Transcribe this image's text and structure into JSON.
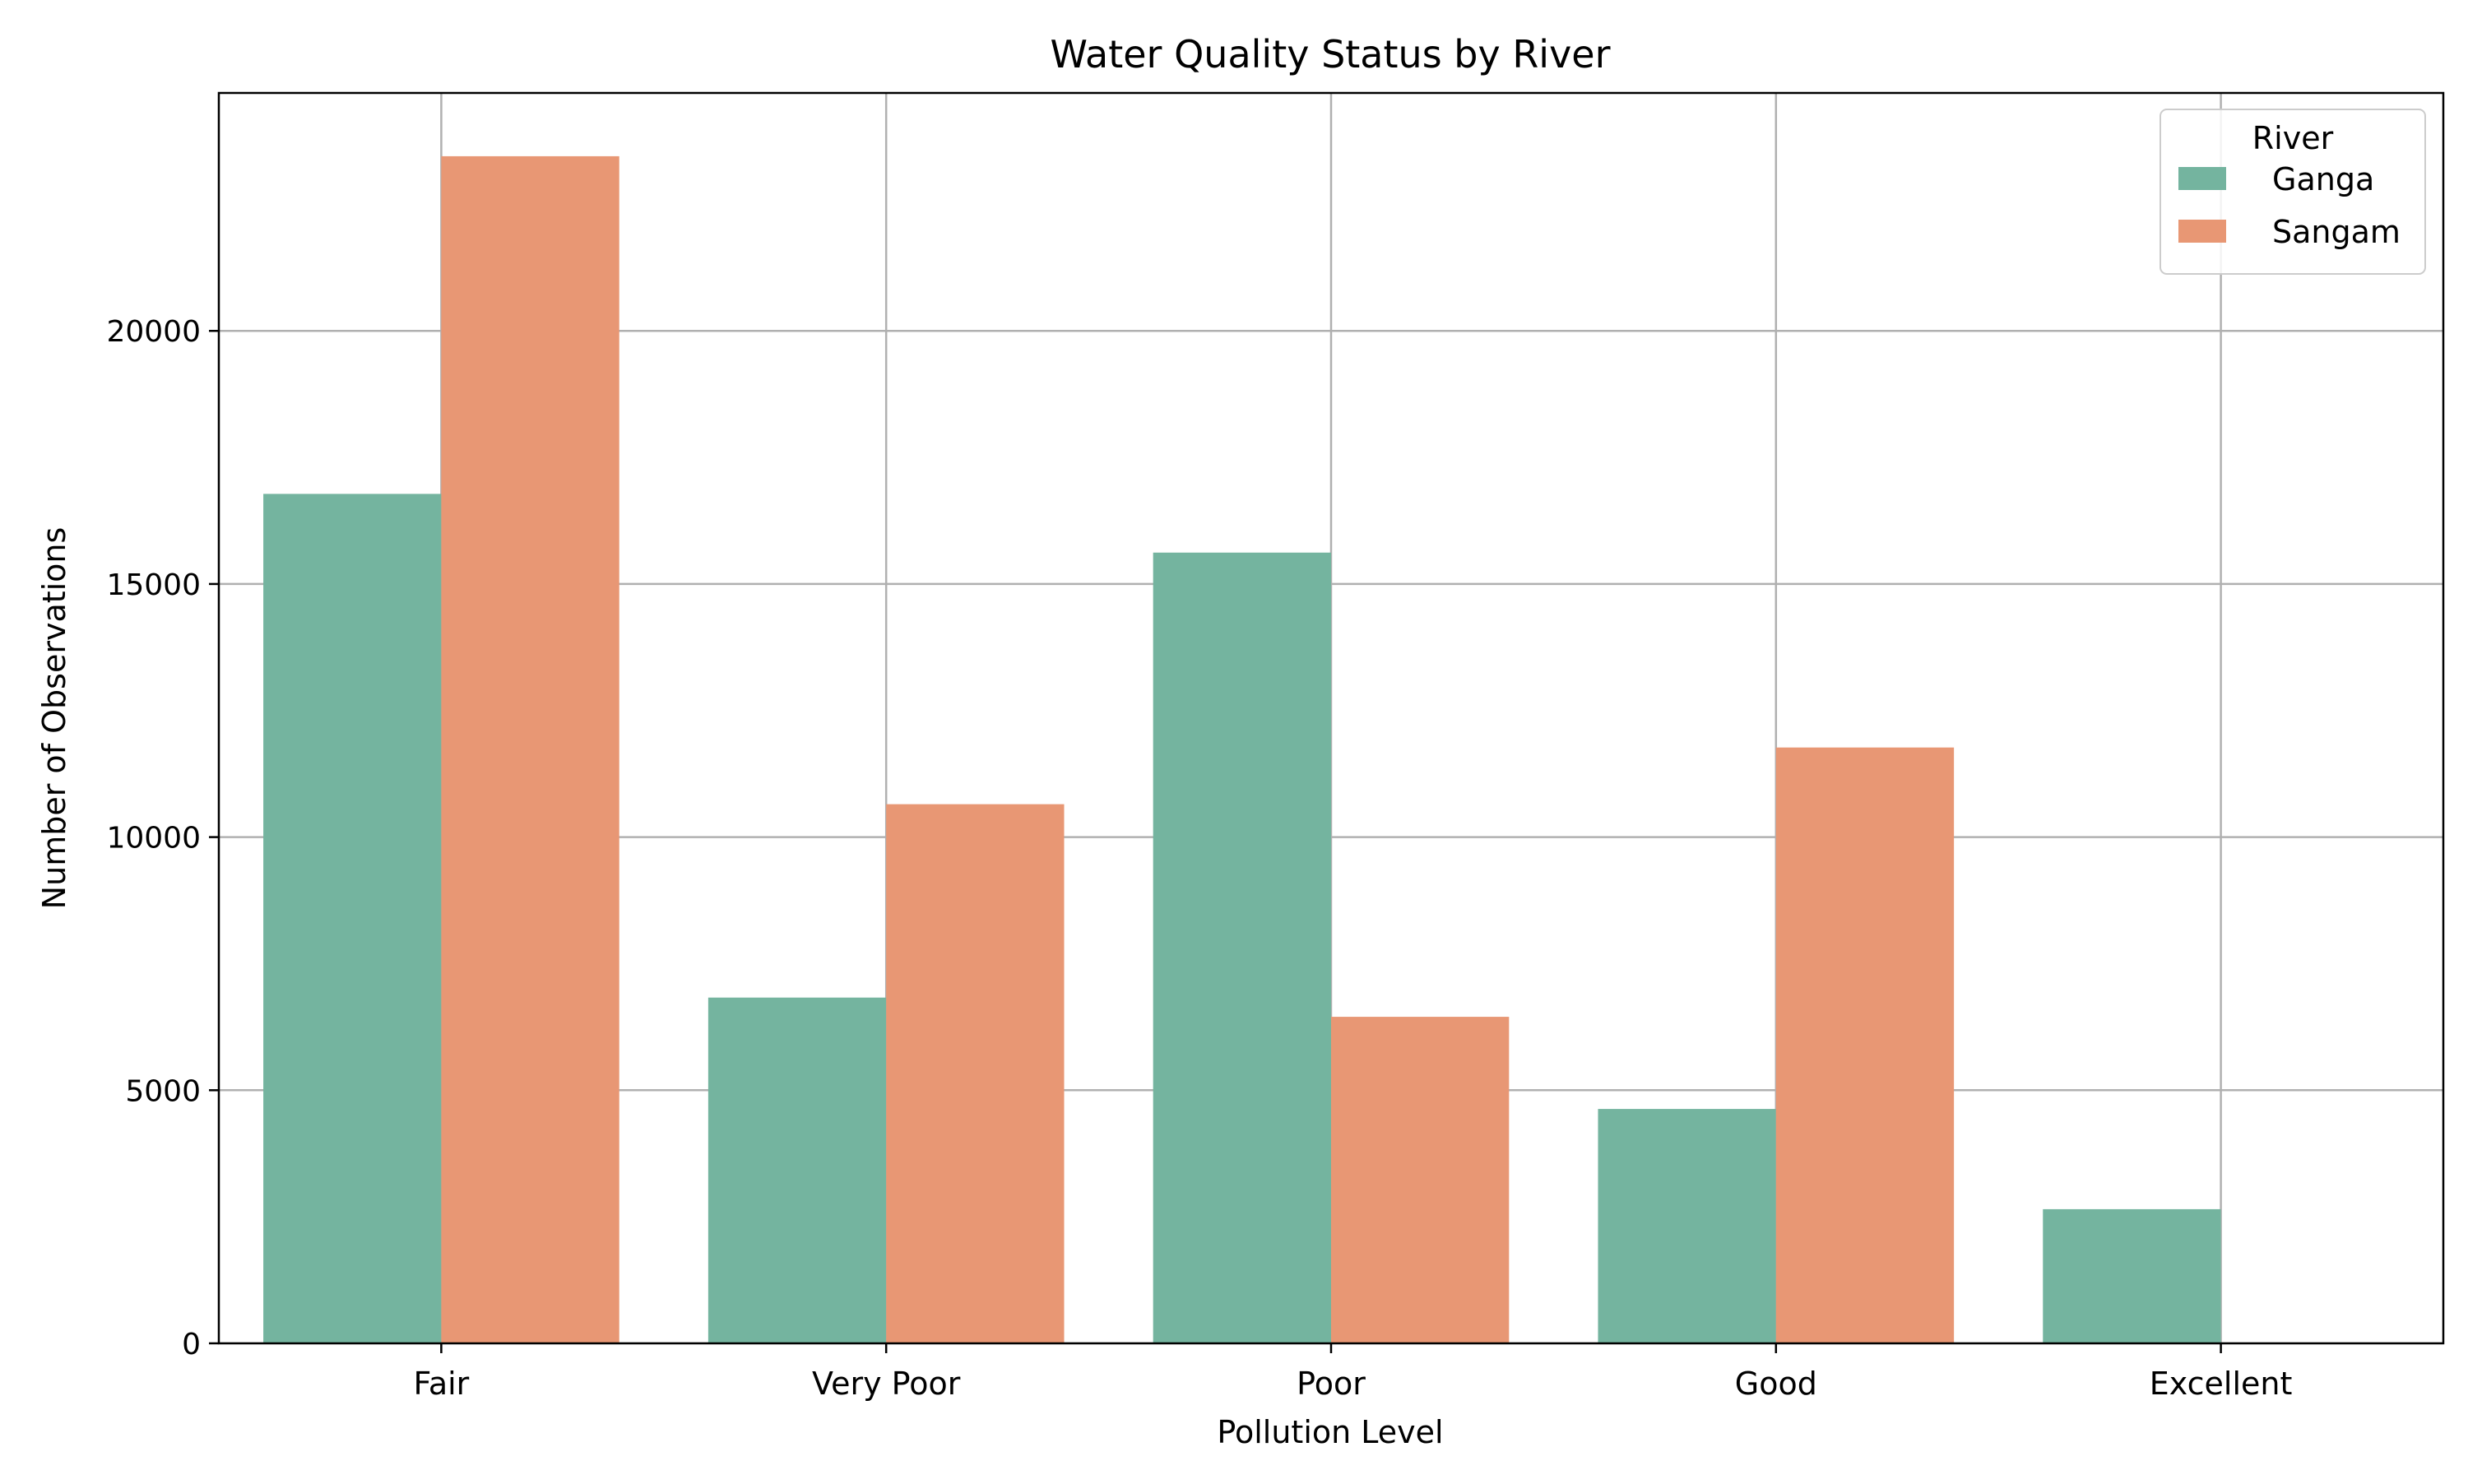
{
  "chart_data": {
    "type": "bar",
    "title": "Water Quality Status by River",
    "xlabel": "Pollution Level",
    "ylabel": "Number of Observations",
    "categories": [
      "Fair",
      "Very Poor",
      "Poor",
      "Good",
      "Excellent"
    ],
    "series": [
      {
        "name": "Ganga",
        "values": [
          16780,
          6830,
          15620,
          4630,
          2650
        ],
        "color": "#74b49f"
      },
      {
        "name": "Sangam",
        "values": [
          23450,
          10650,
          6450,
          11770,
          0
        ],
        "color": "#e89774"
      }
    ],
    "ylim": [
      0,
      24700
    ],
    "yticks": [
      0,
      5000,
      10000,
      15000,
      20000
    ],
    "grid": true,
    "legend": {
      "title": "River",
      "position": "top-right"
    }
  }
}
